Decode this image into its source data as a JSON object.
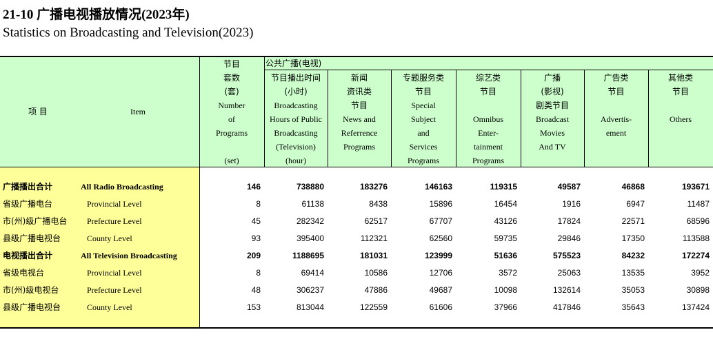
{
  "title": {
    "cn": "21-10  广播电视播放情况(2023年)",
    "en": "Statistics on Broadcasting and Television(2023)"
  },
  "header": {
    "item_cn": "项  目",
    "item_en": "Item",
    "group_label": "公共广播(电视)",
    "columns": [
      {
        "lines": [
          "节目",
          "套数",
          "(套)",
          "Number",
          "of",
          "Programs",
          "",
          "(set)"
        ]
      },
      {
        "lines": [
          "节目播出时间",
          "(小时)",
          "Broadcasting",
          "Hours of Public",
          "Broadcasting",
          "(Television)",
          "(hour)"
        ]
      },
      {
        "lines": [
          "新闻",
          "资讯类",
          "节目",
          "News and",
          "Referrence",
          "Programs"
        ]
      },
      {
        "lines": [
          "专题服务类",
          "节目",
          "Special",
          "Subject",
          "and",
          "Services",
          "Programs"
        ]
      },
      {
        "lines": [
          "综艺类",
          "节目",
          "",
          "Omnibus",
          "Enter-",
          "tainment",
          "Programs"
        ]
      },
      {
        "lines": [
          "广播",
          "(影视)",
          "剧类节目",
          "Broadcast",
          "Movies",
          "And  TV"
        ]
      },
      {
        "lines": [
          "广告类",
          "节目",
          "",
          "Advertis-",
          "ement"
        ]
      },
      {
        "lines": [
          "其他类",
          "节目",
          "",
          "Others"
        ]
      }
    ]
  },
  "rows": [
    {
      "cn": "广播播出合计",
      "en": "All Radio Broadcasting",
      "bold": true,
      "values": [
        "146",
        "738880",
        "183276",
        "146163",
        "119315",
        "49587",
        "46868",
        "193671"
      ]
    },
    {
      "cn": "省级广播电台",
      "en": "Provincial Level",
      "bold": false,
      "values": [
        "8",
        "61138",
        "8438",
        "15896",
        "16454",
        "1916",
        "6947",
        "11487"
      ]
    },
    {
      "cn": "市(州)级广播电台",
      "en": "Prefecture Level",
      "bold": false,
      "values": [
        "45",
        "282342",
        "62517",
        "67707",
        "43126",
        "17824",
        "22571",
        "68596"
      ]
    },
    {
      "cn": "县级广播电视台",
      "en": "County Level",
      "bold": false,
      "values": [
        "93",
        "395400",
        "112321",
        "62560",
        "59735",
        "29846",
        "17350",
        "113588"
      ]
    },
    {
      "cn": "电视播出合计",
      "en": "All Television  Broadcasting",
      "bold": true,
      "values": [
        "209",
        "1188695",
        "181031",
        "123999",
        "51636",
        "575523",
        "84232",
        "172274"
      ]
    },
    {
      "cn": "省级电视台",
      "en": "Provincial Level",
      "bold": false,
      "values": [
        "8",
        "69414",
        "10586",
        "12706",
        "3572",
        "25063",
        "13535",
        "3952"
      ]
    },
    {
      "cn": "市(州)级电视台",
      "en": "Prefecture Level",
      "bold": false,
      "values": [
        "48",
        "306237",
        "47886",
        "49687",
        "10098",
        "132614",
        "35053",
        "30898"
      ]
    },
    {
      "cn": "县级广播电视台",
      "en": "County Level",
      "bold": false,
      "values": [
        "153",
        "813044",
        "122559",
        "61606",
        "37966",
        "417846",
        "35643",
        "137424"
      ]
    }
  ]
}
